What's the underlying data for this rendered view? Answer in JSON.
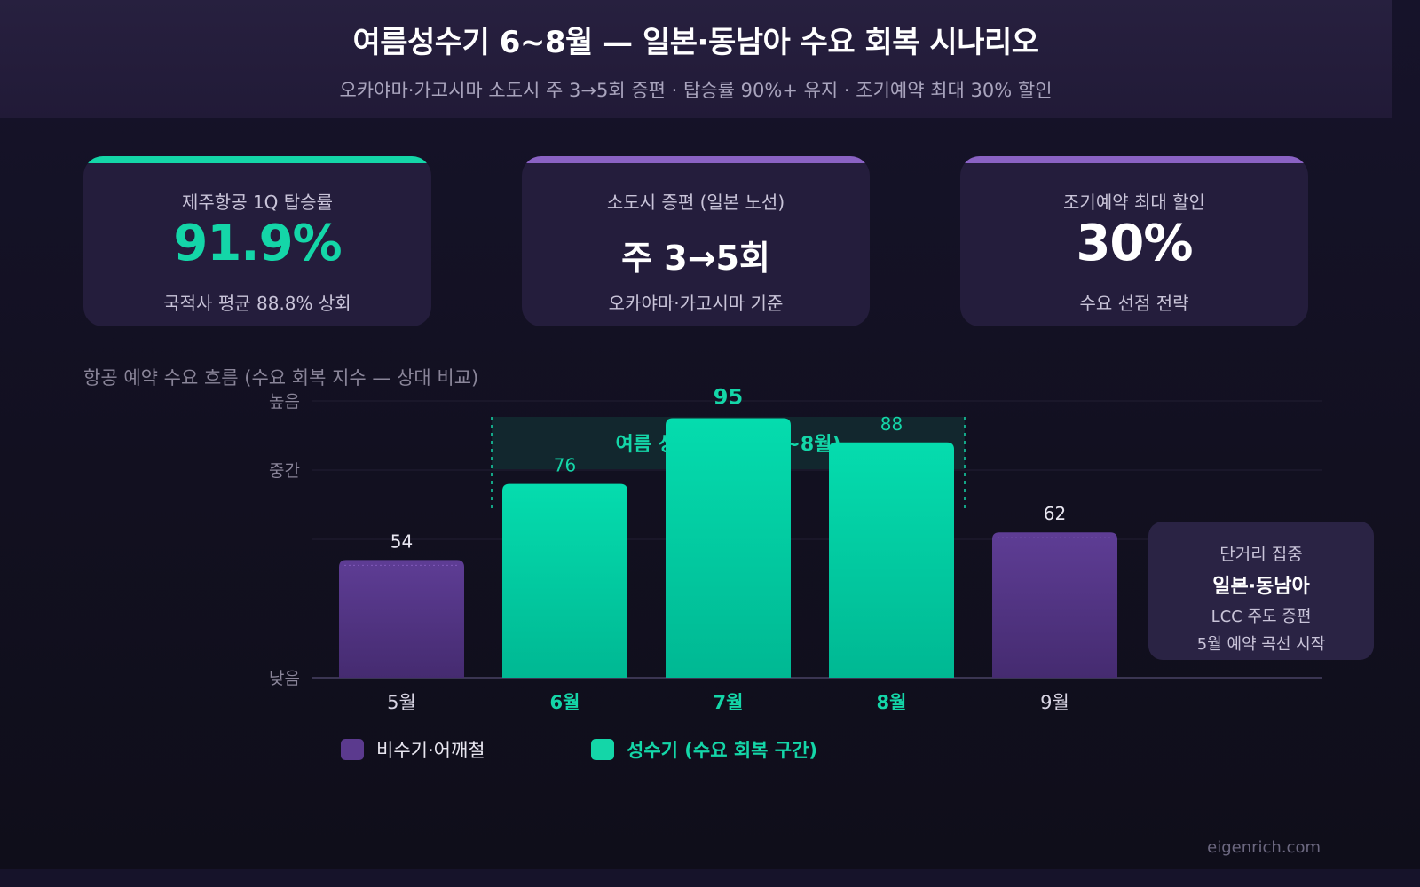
{
  "header": {
    "title": "여름성수기 6~8월 — 일본·동남아 수요 회복 시나리오",
    "subtitle": "오카야마·가고시마 소도시 주 3→5회 증편 · 탑승률 90%+ 유지 · 조기예약 최대 30% 할인"
  },
  "cards": [
    {
      "label": "제주항공 1Q 탑승률",
      "value": "91.9%",
      "note": "국적사 평균 88.8% 상회",
      "accent": "#14d6a8",
      "value_color": "#14d6a8"
    },
    {
      "label": "소도시 증편 (일본 노선)",
      "value": "주 3→5회",
      "note": "오카야마·가고시마 기준",
      "accent": "#8a62c4",
      "value_color": "#ffffff"
    },
    {
      "label": "조기예약 최대 할인",
      "value": "30%",
      "note": "수요 선점 전략",
      "accent": "#8a62c4",
      "value_color": "#ffffff"
    }
  ],
  "section_title": "항공 예약 수요 흐름 (수요 회복 지수 — 상대 비교)",
  "side_note": {
    "line1": "단거리 집중",
    "line2": "일본·동남아",
    "line3": "LCC 주도 증편",
    "line4": "5월 예약 곡선 시작"
  },
  "footer": "eigenrich.com",
  "chart_data": {
    "type": "bar",
    "title": "항공 예약 수요 흐름 (수요 회복 지수 — 상대 비교)",
    "categories": [
      "5월",
      "6월",
      "7월",
      "8월",
      "9월"
    ],
    "values": [
      54,
      76,
      95,
      88,
      62
    ],
    "highlight": [
      false,
      true,
      true,
      true,
      false
    ],
    "y_tick_labels": [
      "낮음",
      "중간",
      "높음"
    ],
    "ylim": [
      20,
      110
    ],
    "grid": true,
    "band_label": "여름 성수기 구간 (6~8월)",
    "legend": [
      {
        "label": "비수기·어깨철",
        "color": "#5b3a8e"
      },
      {
        "label": "성수기 (수요 회복 구간)",
        "color": "#14d6a8"
      }
    ],
    "colors": {
      "off_peak": "#5b3a8e",
      "peak": "#14d6a8"
    }
  }
}
